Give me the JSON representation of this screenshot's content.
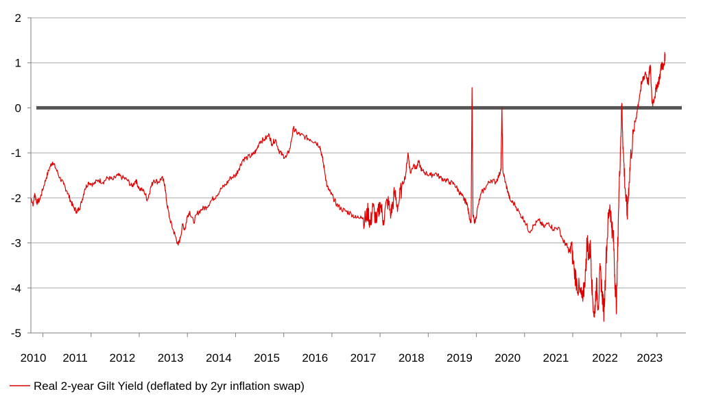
{
  "chart_data": {
    "type": "line",
    "title": "",
    "xlabel": "",
    "ylabel": "",
    "ylim": [
      -5,
      2
    ],
    "xlim": [
      2010.0,
      2023.6
    ],
    "grid": true,
    "legend_position": "bottom-left",
    "y_ticks": [
      "2",
      "1",
      "0",
      "-1",
      "-2",
      "-3",
      "-4",
      "-5"
    ],
    "x_ticks": [
      "2010",
      "2011",
      "2012",
      "2013",
      "2014",
      "2015",
      "2016",
      "2017",
      "2018",
      "2019",
      "2020",
      "2021",
      "2022",
      "2023"
    ],
    "zero_line_color": "#555555",
    "series": [
      {
        "name": "Real 2-year Gilt Yield (deflated by 2yr inflation swap)",
        "color": "#e00000",
        "points": [
          [
            2010.0,
            -2.0
          ],
          [
            2010.05,
            -2.15
          ],
          [
            2010.08,
            -1.9
          ],
          [
            2010.12,
            -2.1
          ],
          [
            2010.18,
            -2.05
          ],
          [
            2010.25,
            -1.8
          ],
          [
            2010.32,
            -1.55
          ],
          [
            2010.4,
            -1.3
          ],
          [
            2010.45,
            -1.2
          ],
          [
            2010.52,
            -1.35
          ],
          [
            2010.6,
            -1.55
          ],
          [
            2010.68,
            -1.7
          ],
          [
            2010.75,
            -1.85
          ],
          [
            2010.82,
            -2.05
          ],
          [
            2010.88,
            -2.2
          ],
          [
            2010.95,
            -2.3
          ],
          [
            2011.0,
            -2.25
          ],
          [
            2011.05,
            -2.1
          ],
          [
            2011.12,
            -1.8
          ],
          [
            2011.2,
            -1.65
          ],
          [
            2011.3,
            -1.7
          ],
          [
            2011.4,
            -1.6
          ],
          [
            2011.5,
            -1.65
          ],
          [
            2011.6,
            -1.55
          ],
          [
            2011.7,
            -1.6
          ],
          [
            2011.8,
            -1.5
          ],
          [
            2011.9,
            -1.55
          ],
          [
            2012.0,
            -1.6
          ],
          [
            2012.1,
            -1.75
          ],
          [
            2012.18,
            -1.6
          ],
          [
            2012.25,
            -1.8
          ],
          [
            2012.35,
            -1.85
          ],
          [
            2012.42,
            -2.05
          ],
          [
            2012.48,
            -1.8
          ],
          [
            2012.55,
            -1.6
          ],
          [
            2012.65,
            -1.65
          ],
          [
            2012.72,
            -1.55
          ],
          [
            2012.78,
            -1.7
          ],
          [
            2012.82,
            -2.1
          ],
          [
            2012.88,
            -2.45
          ],
          [
            2012.95,
            -2.7
          ],
          [
            2013.0,
            -2.85
          ],
          [
            2013.06,
            -3.05
          ],
          [
            2013.1,
            -2.9
          ],
          [
            2013.15,
            -2.6
          ],
          [
            2013.2,
            -2.7
          ],
          [
            2013.25,
            -2.4
          ],
          [
            2013.3,
            -2.3
          ],
          [
            2013.38,
            -2.55
          ],
          [
            2013.45,
            -2.35
          ],
          [
            2013.55,
            -2.25
          ],
          [
            2013.65,
            -2.2
          ],
          [
            2013.75,
            -2.05
          ],
          [
            2013.85,
            -1.95
          ],
          [
            2013.95,
            -1.8
          ],
          [
            2014.05,
            -1.7
          ],
          [
            2014.15,
            -1.55
          ],
          [
            2014.25,
            -1.5
          ],
          [
            2014.32,
            -1.35
          ],
          [
            2014.4,
            -1.15
          ],
          [
            2014.5,
            -1.1
          ],
          [
            2014.6,
            -1.05
          ],
          [
            2014.68,
            -0.95
          ],
          [
            2014.75,
            -0.75
          ],
          [
            2014.85,
            -0.7
          ],
          [
            2014.95,
            -0.6
          ],
          [
            2015.0,
            -0.8
          ],
          [
            2015.08,
            -0.7
          ],
          [
            2015.15,
            -0.95
          ],
          [
            2015.22,
            -1.05
          ],
          [
            2015.3,
            -1.1
          ],
          [
            2015.38,
            -0.9
          ],
          [
            2015.45,
            -0.45
          ],
          [
            2015.52,
            -0.55
          ],
          [
            2015.6,
            -0.6
          ],
          [
            2015.7,
            -0.65
          ],
          [
            2015.8,
            -0.7
          ],
          [
            2015.9,
            -0.75
          ],
          [
            2016.0,
            -0.85
          ],
          [
            2016.05,
            -1.1
          ],
          [
            2016.1,
            -1.4
          ],
          [
            2016.15,
            -1.75
          ],
          [
            2016.2,
            -1.85
          ],
          [
            2016.28,
            -2.0
          ],
          [
            2016.35,
            -2.15
          ],
          [
            2016.45,
            -2.25
          ],
          [
            2016.55,
            -2.3
          ],
          [
            2016.65,
            -2.35
          ],
          [
            2016.75,
            -2.45
          ],
          [
            2016.85,
            -2.4
          ],
          [
            2016.95,
            -2.5
          ],
          [
            2017.0,
            -2.3
          ],
          [
            2017.05,
            -2.6
          ],
          [
            2017.1,
            -2.2
          ],
          [
            2017.18,
            -2.55
          ],
          [
            2017.25,
            -2.1
          ],
          [
            2017.32,
            -2.5
          ],
          [
            2017.4,
            -2.05
          ],
          [
            2017.48,
            -2.35
          ],
          [
            2017.55,
            -1.9
          ],
          [
            2017.62,
            -2.2
          ],
          [
            2017.7,
            -1.75
          ],
          [
            2017.78,
            -1.5
          ],
          [
            2017.83,
            -1.0
          ],
          [
            2017.88,
            -1.45
          ],
          [
            2017.95,
            -1.25
          ],
          [
            2018.0,
            -1.35
          ],
          [
            2018.05,
            -1.2
          ],
          [
            2018.12,
            -1.4
          ],
          [
            2018.2,
            -1.45
          ],
          [
            2018.3,
            -1.5
          ],
          [
            2018.4,
            -1.45
          ],
          [
            2018.5,
            -1.55
          ],
          [
            2018.6,
            -1.6
          ],
          [
            2018.7,
            -1.65
          ],
          [
            2018.8,
            -1.7
          ],
          [
            2018.88,
            -1.85
          ],
          [
            2018.95,
            -1.95
          ],
          [
            2019.0,
            -2.05
          ],
          [
            2019.05,
            -2.1
          ],
          [
            2019.1,
            -2.4
          ],
          [
            2019.14,
            -2.55
          ],
          [
            2019.16,
            0.45
          ],
          [
            2019.18,
            -2.4
          ],
          [
            2019.22,
            -2.55
          ],
          [
            2019.28,
            -2.2
          ],
          [
            2019.35,
            -1.9
          ],
          [
            2019.45,
            -1.75
          ],
          [
            2019.55,
            -1.6
          ],
          [
            2019.65,
            -1.65
          ],
          [
            2019.72,
            -1.5
          ],
          [
            2019.76,
            -1.35
          ],
          [
            2019.78,
            0.0
          ],
          [
            2019.8,
            -1.4
          ],
          [
            2019.85,
            -1.65
          ],
          [
            2019.9,
            -1.85
          ],
          [
            2019.95,
            -2.05
          ],
          [
            2020.05,
            -2.15
          ],
          [
            2020.15,
            -2.35
          ],
          [
            2020.25,
            -2.5
          ],
          [
            2020.35,
            -2.75
          ],
          [
            2020.45,
            -2.6
          ],
          [
            2020.55,
            -2.5
          ],
          [
            2020.65,
            -2.65
          ],
          [
            2020.75,
            -2.55
          ],
          [
            2020.85,
            -2.7
          ],
          [
            2020.95,
            -2.65
          ],
          [
            2021.05,
            -2.95
          ],
          [
            2021.12,
            -3.05
          ],
          [
            2021.18,
            -3.2
          ],
          [
            2021.22,
            -3.05
          ],
          [
            2021.28,
            -3.6
          ],
          [
            2021.34,
            -3.9
          ],
          [
            2021.4,
            -4.1
          ],
          [
            2021.46,
            -4.3
          ],
          [
            2021.52,
            -3.6
          ],
          [
            2021.55,
            -2.9
          ],
          [
            2021.58,
            -3.3
          ],
          [
            2021.62,
            -3.1
          ],
          [
            2021.66,
            -4.2
          ],
          [
            2021.7,
            -4.65
          ],
          [
            2021.74,
            -3.9
          ],
          [
            2021.78,
            -4.4
          ],
          [
            2021.82,
            -3.6
          ],
          [
            2021.86,
            -4.1
          ],
          [
            2021.9,
            -4.55
          ],
          [
            2021.94,
            -3.4
          ],
          [
            2021.98,
            -2.6
          ],
          [
            2022.02,
            -2.15
          ],
          [
            2022.06,
            -2.6
          ],
          [
            2022.1,
            -3.0
          ],
          [
            2022.13,
            -3.9
          ],
          [
            2022.16,
            -4.4
          ],
          [
            2022.2,
            -2.3
          ],
          [
            2022.24,
            -0.9
          ],
          [
            2022.27,
            0.1
          ],
          [
            2022.3,
            -1.0
          ],
          [
            2022.34,
            -1.8
          ],
          [
            2022.38,
            -2.4
          ],
          [
            2022.42,
            -1.65
          ],
          [
            2022.46,
            -1.0
          ],
          [
            2022.52,
            -0.5
          ],
          [
            2022.58,
            -0.1
          ],
          [
            2022.64,
            0.3
          ],
          [
            2022.7,
            0.6
          ],
          [
            2022.76,
            0.8
          ],
          [
            2022.82,
            0.55
          ],
          [
            2022.86,
            0.95
          ],
          [
            2022.9,
            0.1
          ],
          [
            2022.95,
            0.25
          ],
          [
            2023.0,
            0.5
          ],
          [
            2023.05,
            0.65
          ],
          [
            2023.1,
            1.0
          ],
          [
            2023.13,
            0.85
          ],
          [
            2023.17,
            1.2
          ]
        ]
      }
    ]
  }
}
